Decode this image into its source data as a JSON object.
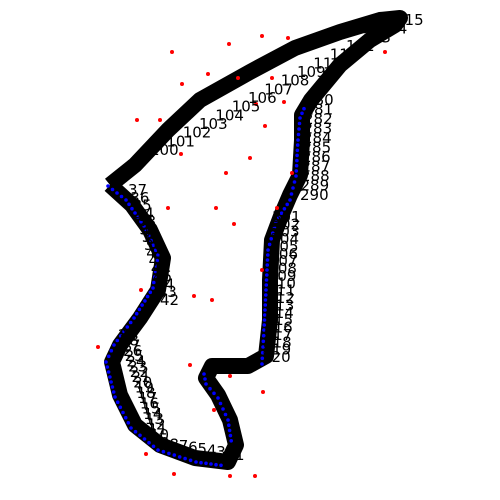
{
  "colors": {
    "background": "#ffffff",
    "track": "#0000ff",
    "scatter": "#ff0000",
    "label": "#000000"
  },
  "labels": {
    "left_flank": [
      "37",
      "36",
      "35",
      "34",
      "33",
      "32",
      "31",
      "30",
      "49",
      "47",
      "46",
      "45",
      "44",
      "43",
      "42"
    ],
    "bottom_left": [
      "29",
      "28",
      "27",
      "26",
      "25",
      "24",
      "23",
      "22",
      "21",
      "20",
      "19",
      "18",
      "17",
      "16",
      "15",
      "14",
      "13",
      "12",
      "11",
      "10"
    ],
    "bottom_right": [
      "9",
      "8",
      "7",
      "6",
      "5",
      "4",
      "3",
      "2",
      "1"
    ],
    "right_flank": [
      "301",
      "302",
      "303",
      "304",
      "305",
      "306",
      "307",
      "308",
      "309",
      "310",
      "311",
      "312",
      "313",
      "314",
      "315",
      "316",
      "317",
      "318",
      "319",
      "320"
    ],
    "upper_right": [
      "280",
      "281",
      "282",
      "283",
      "284",
      "285",
      "286",
      "287",
      "288",
      "289",
      "290"
    ],
    "top_diagonal": [
      "100",
      "101",
      "102",
      "103",
      "104",
      "105",
      "106",
      "107",
      "108",
      "109",
      "110",
      "111",
      "112",
      "113",
      "114",
      "115"
    ]
  }
}
